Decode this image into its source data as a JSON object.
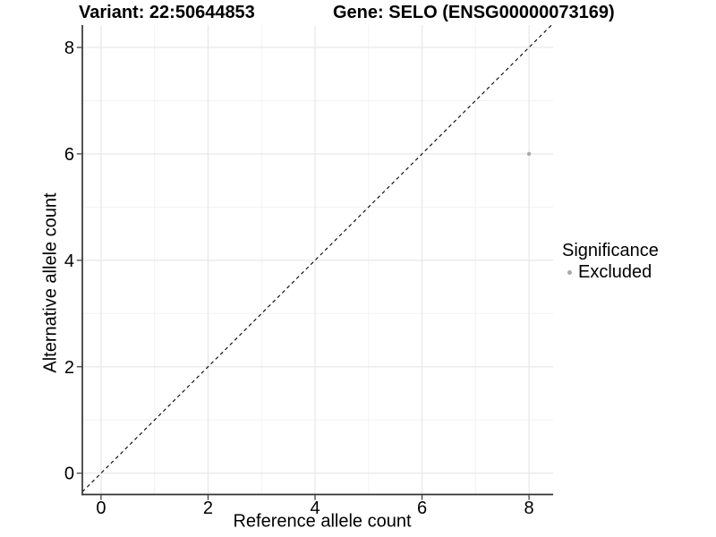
{
  "header": {
    "variant_title": "Variant: 22:50644853",
    "gene_title": "Gene: SELO (ENSG00000073169)"
  },
  "legend": {
    "title": "Significance",
    "items": [
      {
        "label": "Excluded",
        "color": "#A9A9A9"
      }
    ]
  },
  "chart_data": {
    "type": "scatter",
    "xlabel": "Reference allele count",
    "ylabel": "Alternative allele count",
    "x_ticks": [
      0,
      2,
      4,
      6,
      8
    ],
    "y_ticks": [
      0,
      2,
      4,
      6,
      8
    ],
    "x_minor": [
      1,
      3,
      5,
      7
    ],
    "y_minor": [
      1,
      3,
      5,
      7
    ],
    "xlim": [
      -0.35,
      8.45
    ],
    "ylim": [
      -0.4,
      8.42
    ],
    "points": [
      {
        "x": 8,
        "y": 6,
        "series": "Excluded",
        "color": "#A9A9A9"
      }
    ],
    "reference_line": {
      "type": "identity",
      "style": "dashed",
      "color": "#000000"
    },
    "grid": {
      "major_color": "#E5E5E5",
      "minor_color": "#F2F2F2"
    },
    "axis_color": "#333333",
    "legend_position": "right"
  }
}
